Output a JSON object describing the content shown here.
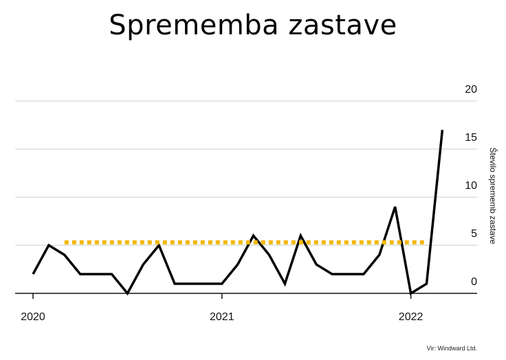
{
  "chart_data": {
    "type": "line",
    "title": "Sprememba zastave",
    "ylabel": "Število sprememb zastave",
    "ylim": [
      0,
      20
    ],
    "yticks": [
      0,
      5,
      10,
      15,
      20
    ],
    "xticks": [
      "2020",
      "2021",
      "2022"
    ],
    "grid": "horizontal",
    "series": [
      {
        "color": "#000000",
        "x": [
          "2020-01",
          "2020-02",
          "2020-03",
          "2020-04",
          "2020-05",
          "2020-06",
          "2020-07",
          "2020-08",
          "2020-09",
          "2020-10",
          "2020-11",
          "2020-12",
          "2021-01",
          "2021-02",
          "2021-03",
          "2021-04",
          "2021-05",
          "2021-06",
          "2021-07",
          "2021-08",
          "2021-09",
          "2021-10",
          "2021-11",
          "2021-12",
          "2022-01",
          "2022-02",
          "2022-03"
        ],
        "values": [
          2,
          5,
          4,
          2,
          2,
          2,
          0,
          3,
          5,
          1,
          1,
          1,
          1,
          3,
          6,
          4,
          1,
          6,
          3,
          2,
          2,
          2,
          4,
          9,
          0,
          1,
          17
        ]
      },
      {
        "color": "#f2b705",
        "style": "dotted",
        "x": [
          "2020-03",
          "2022-02"
        ],
        "values": [
          5.3,
          5.3
        ]
      }
    ]
  },
  "source": "Vir: Windward Ltd."
}
